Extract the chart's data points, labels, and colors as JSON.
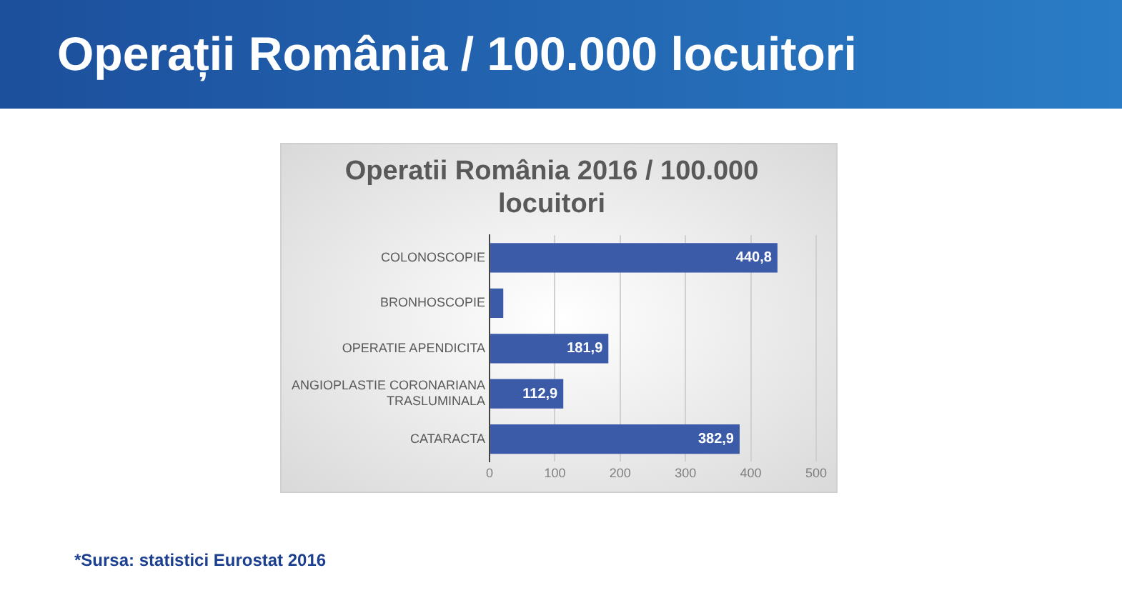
{
  "chart_data": {
    "type": "bar",
    "orientation": "horizontal",
    "title": "Operații România / 100.000 locuitori",
    "subtitle": "Operatii România 2016 / 100.000 locuitori",
    "categories": [
      "COLONOSCOPIE",
      "BRONHOSCOPIE",
      "OPERATIE APENDICITA",
      "ANGIOPLASTIE CORONARIANA TRASLUMINALA",
      "CATARACTA"
    ],
    "values": [
      440.8,
      21,
      181.9,
      112.9,
      382.9
    ],
    "value_labels": [
      "440,8",
      null,
      "181,9",
      "112,9",
      "382,9"
    ],
    "color": "#3b5ba9",
    "xlim": [
      0,
      500
    ],
    "xticks": [
      0,
      100,
      200,
      300,
      400,
      500
    ],
    "grid": "x",
    "legend": false,
    "annotations": [
      "*Sursa: statistici Eurostat 2016"
    ]
  }
}
